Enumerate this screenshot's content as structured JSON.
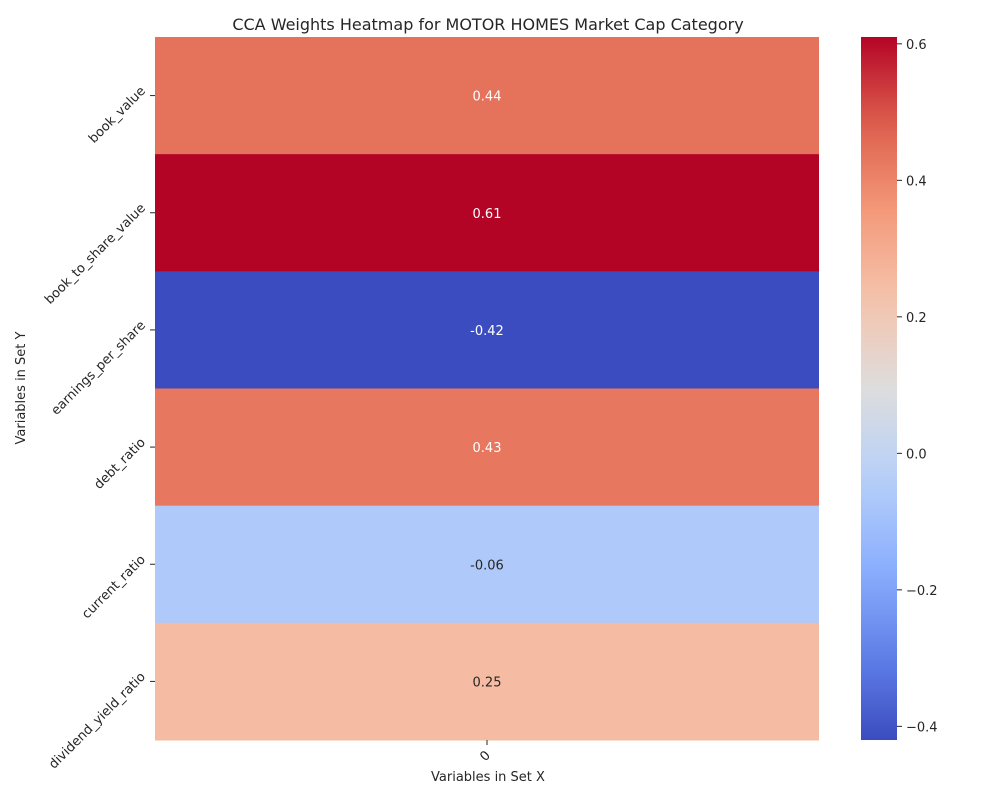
{
  "chart_data": {
    "type": "heatmap",
    "title": "CCA Weights Heatmap for MOTOR HOMES Market Cap Category",
    "xlabel": "Variables in Set X",
    "ylabel": "Variables in Set Y",
    "x_categories": [
      "0"
    ],
    "y_categories": [
      "book_value",
      "book_to_share_value",
      "earnings_per_share",
      "debt_ratio",
      "current_ratio",
      "dividend_yield_ratio"
    ],
    "values": [
      0.44,
      0.61,
      -0.42,
      0.43,
      -0.06,
      0.25
    ],
    "value_labels": [
      "0.44",
      "0.61",
      "-0.42",
      "0.43",
      "-0.06",
      "0.25"
    ],
    "colormap": "coolwarm",
    "color_range": [
      -0.42,
      0.61
    ],
    "colorbar": {
      "ticks": [
        -0.4,
        -0.2,
        0.0,
        0.2,
        0.4,
        0.6
      ],
      "tick_labels": [
        "−0.4",
        "−0.2",
        "0.0",
        "0.2",
        "0.4",
        "0.6"
      ]
    }
  }
}
